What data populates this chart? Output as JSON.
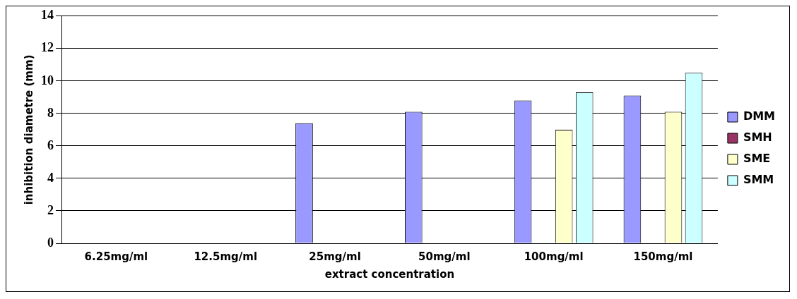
{
  "chart_data": {
    "type": "bar",
    "xlabel": "extract concentration",
    "ylabel": "inhibition diametre (mm)",
    "categories": [
      "6.25mg/ml",
      "12.5mg/ml",
      "25mg/ml",
      "50mg/ml",
      "100mg/ml",
      "150mg/ml"
    ],
    "series": [
      {
        "name": "DMM",
        "color": "#9999ff",
        "values": [
          0,
          0,
          7.4,
          8.1,
          8.8,
          9.1
        ]
      },
      {
        "name": "SMH",
        "color": "#993366",
        "values": [
          0,
          0,
          0,
          0,
          0,
          0
        ]
      },
      {
        "name": "SME",
        "color": "#ffffcc",
        "values": [
          0,
          0,
          0,
          0,
          7.0,
          8.1
        ]
      },
      {
        "name": "SMM",
        "color": "#ccffff",
        "values": [
          0,
          0,
          0,
          0,
          9.3,
          10.5
        ]
      }
    ],
    "ylim": [
      0,
      14
    ],
    "yticks": [
      0,
      2,
      4,
      6,
      8,
      10,
      12,
      14
    ],
    "grid": "y",
    "legend": "right"
  }
}
